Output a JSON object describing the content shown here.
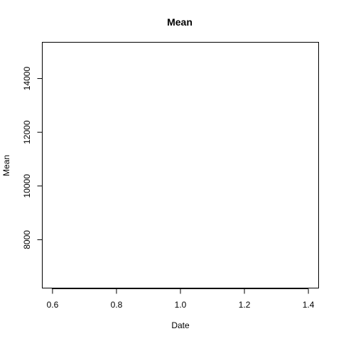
{
  "chart_data": {
    "type": "line",
    "title": "Mean",
    "xlabel": "Date",
    "ylabel": "Mean",
    "xlim": [
      0.568,
      1.432
    ],
    "ylim": [
      6200,
      15350
    ],
    "x_ticks": [
      0.6,
      0.8,
      1.0,
      1.2,
      1.4
    ],
    "x_tick_labels": [
      "0.6",
      "0.8",
      "1.0",
      "1.2",
      "1.4"
    ],
    "y_ticks": [
      8000,
      10000,
      12000,
      14000
    ],
    "y_tick_labels": [
      "8000",
      "10000",
      "12000",
      "14000"
    ],
    "series": [],
    "grid": false,
    "legend": "none"
  }
}
